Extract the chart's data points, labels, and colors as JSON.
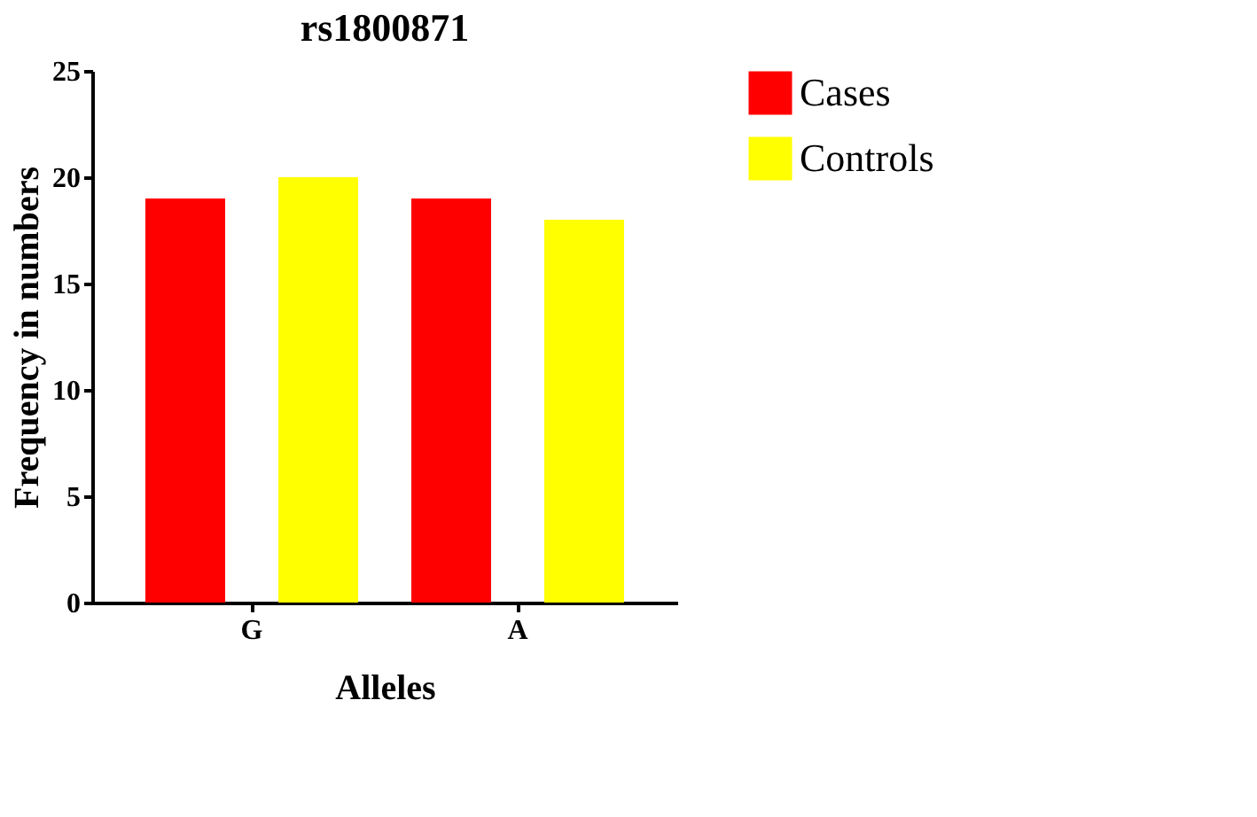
{
  "chart_data": {
    "type": "bar",
    "title": "rs1800871",
    "xlabel": "Alleles",
    "ylabel": "Frequency in numbers",
    "categories": [
      "G",
      "A"
    ],
    "series": [
      {
        "name": "Cases",
        "color": "#ff0000",
        "values": [
          19,
          19
        ]
      },
      {
        "name": "Controls",
        "color": "#ffff00",
        "values": [
          20,
          18
        ]
      }
    ],
    "ylim": [
      0,
      25
    ],
    "yticks": [
      0,
      5,
      10,
      15,
      20,
      25
    ],
    "grid": false,
    "legend": "top right"
  }
}
